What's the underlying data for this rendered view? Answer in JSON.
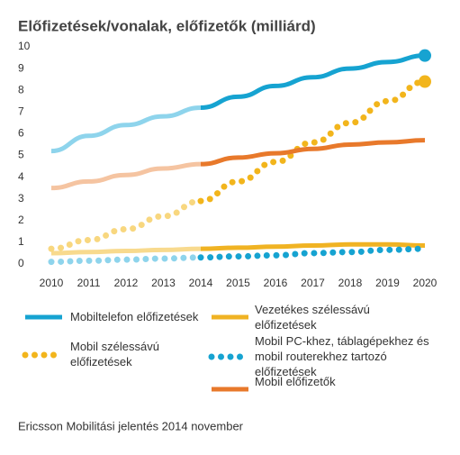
{
  "chart_data": {
    "type": "line",
    "title": "Előfizetések/vonalak, előfizetők (milliárd)",
    "source": "Ericsson Mobilitási jelentés 2014 november",
    "x": [
      2010,
      2011,
      2012,
      2013,
      2014,
      2015,
      2016,
      2017,
      2018,
      2019,
      2020
    ],
    "xlim": [
      2010,
      2020
    ],
    "xticks": [
      2010,
      2011,
      2012,
      2013,
      2014,
      2015,
      2016,
      2017,
      2018,
      2019,
      2020
    ],
    "ylim": [
      0,
      10
    ],
    "yticks": [
      0,
      1,
      2,
      3,
      4,
      5,
      6,
      7,
      8,
      9,
      10
    ],
    "forecast_from": 2014,
    "series": [
      {
        "name": "Mobiltelefon előfizetések",
        "color": "#16a3d1",
        "history_color": "#8ed4ec",
        "style": "solid",
        "end_marker": true,
        "values": [
          5.2,
          5.9,
          6.4,
          6.8,
          7.2,
          7.7,
          8.2,
          8.6,
          9.0,
          9.3,
          9.6
        ]
      },
      {
        "name": "Vezetékes szélessávú előfizetések",
        "color": "#f0b323",
        "history_color": "#f8da8e",
        "style": "solid",
        "end_marker": false,
        "values": [
          0.5,
          0.55,
          0.6,
          0.65,
          0.7,
          0.75,
          0.8,
          0.85,
          0.9,
          0.9,
          0.85
        ]
      },
      {
        "name": "Mobil szélessávú előfizetések",
        "color": "#f2b51c",
        "history_color": "#f8d77f",
        "style": "dotted",
        "end_marker": true,
        "values": [
          0.7,
          1.1,
          1.6,
          2.2,
          2.9,
          3.8,
          4.7,
          5.6,
          6.5,
          7.5,
          8.4
        ]
      },
      {
        "name": "Mobil PC-khez, táblagépekhez és mobil routerekhez tartozó előfizetések",
        "color": "#16a3d1",
        "history_color": "#8ed4ec",
        "style": "dotted",
        "end_marker": false,
        "values": [
          0.1,
          0.15,
          0.2,
          0.25,
          0.3,
          0.35,
          0.4,
          0.5,
          0.55,
          0.65,
          0.7
        ]
      },
      {
        "name": "Mobil előfizetők",
        "color": "#e8792b",
        "history_color": "#f5c4a1",
        "style": "solid",
        "end_marker": false,
        "values": [
          3.5,
          3.8,
          4.1,
          4.4,
          4.6,
          4.9,
          5.1,
          5.3,
          5.5,
          5.6,
          5.7
        ]
      }
    ]
  }
}
